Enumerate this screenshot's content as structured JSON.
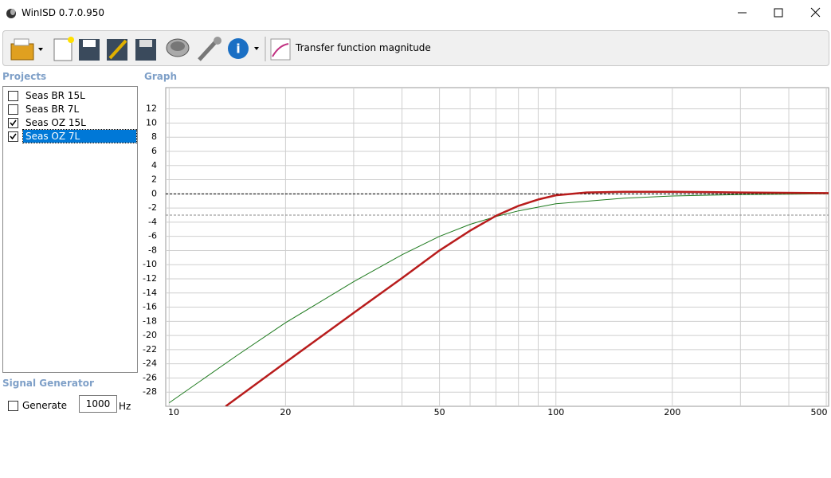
{
  "window": {
    "title": "WinISD 0.7.0.950"
  },
  "toolbar": {
    "view_label": "Transfer function magnitude"
  },
  "projects": {
    "title": "Projects",
    "items": [
      {
        "label": "Seas BR 15L",
        "checked": false
      },
      {
        "label": "Seas BR 7L",
        "checked": false
      },
      {
        "label": "Seas OZ 15L",
        "checked": true
      },
      {
        "label": "Seas OZ 7L",
        "checked": true
      }
    ],
    "selected": 3
  },
  "signal_generator": {
    "title": "Signal Generator",
    "checkbox_label": "Generate",
    "frequency": "1000",
    "unit": "Hz"
  },
  "chart_data": {
    "type": "line",
    "title": "Graph",
    "xscale": "log",
    "xlim": [
      9.8,
      507
    ],
    "ylim": [
      -30,
      15
    ],
    "xticks": [
      10,
      20,
      50,
      100,
      200,
      500
    ],
    "xgrid_minor": [
      30,
      40,
      60,
      70,
      80,
      90,
      300,
      400
    ],
    "yticks": [
      -28,
      -26,
      -24,
      -22,
      -20,
      -18,
      -16,
      -14,
      -12,
      -10,
      -8,
      -6,
      -4,
      -2,
      0,
      2,
      4,
      6,
      8,
      10,
      12
    ],
    "grid": true,
    "reference_lines": [
      {
        "value": 0,
        "color": "#000000"
      },
      {
        "value": -3,
        "color": "#888888"
      }
    ],
    "series": [
      {
        "color": "#1e7a1e",
        "width": 1,
        "x": [
          10,
          15,
          20,
          30,
          40,
          50,
          60,
          70,
          80,
          100,
          150,
          200,
          300,
          507
        ],
        "values": [
          -29.5,
          -22.8,
          -18.2,
          -12.4,
          -8.6,
          -6.0,
          -4.3,
          -3.2,
          -2.4,
          -1.4,
          -0.6,
          -0.3,
          -0.1,
          0
        ]
      },
      {
        "color": "#b81c1c",
        "width": 2.5,
        "x": [
          14,
          20,
          30,
          40,
          50,
          60,
          70,
          80,
          90,
          100,
          120,
          150,
          200,
          300,
          507
        ],
        "values": [
          -30,
          -23.8,
          -16.8,
          -11.9,
          -8.0,
          -5.2,
          -3.1,
          -1.7,
          -0.8,
          -0.2,
          0.2,
          0.3,
          0.3,
          0.2,
          0.1
        ]
      }
    ]
  }
}
